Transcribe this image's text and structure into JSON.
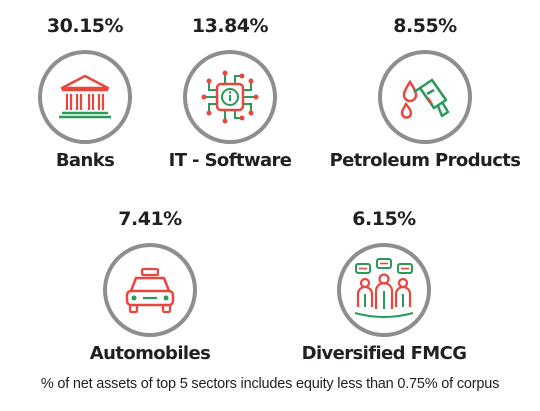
{
  "chart_data": {
    "type": "table",
    "categories": [
      "Banks",
      "IT - Software",
      "Petroleum Products",
      "Automobiles",
      "Diversified FMCG"
    ],
    "values": [
      30.15,
      13.84,
      8.55,
      7.41,
      6.15
    ],
    "value_labels": [
      "30.15%",
      "13.84%",
      "8.55%",
      "7.41%",
      "6.15%"
    ],
    "icons": [
      "bank-icon",
      "chip-icon",
      "fuel-nozzle-icon",
      "car-icon",
      "consumers-icon"
    ],
    "footnote": "% of net assets of top 5 sectors includes equity less than 0.75% of corpus"
  },
  "colors": {
    "accent_red": "#e8473e",
    "accent_green": "#2a9a5b",
    "circle_border": "#8f8e8e",
    "text": "#231f20"
  }
}
